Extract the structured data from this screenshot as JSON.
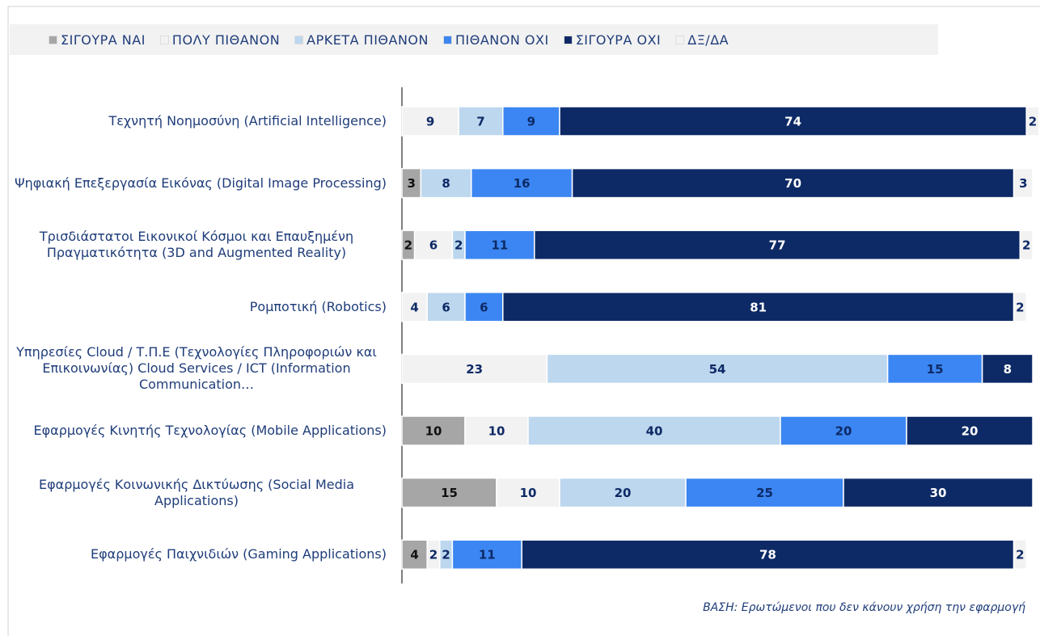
{
  "chart_data": {
    "type": "stacked-bar-horizontal",
    "categories": [
      "Τεχνητή Νοημοσύνη (Artificial Intelligence)",
      "Ψηφιακή Επεξεργασία Εικόνας (Digital Image Processing)",
      "Τρισδιάστατοι Εικονικοί Κόσμοι και Επαυξημένη Πραγματικότητα (3D and Augmented Reality)",
      "Ρομποτική (Robotics)",
      "Υπηρεσίες Cloud  / Τ.Π.Ε (Τεχνολογίες Πληροφοριών και Επικοινωνίας) Cloud Services / ICT (Information Communication…",
      "Εφαρμογές Κινητής Τεχνολογίας  (Mobile Applications)",
      "Εφαρμογές Κοινωνικής Δικτύωσης (Social Media Applications)",
      "Εφαρμογές Παιχνιδιών (Gaming Applications)"
    ],
    "series": [
      {
        "name": "ΣΙΓΟΥΡΑ ΝΑΙ",
        "color": "#a6a6a6",
        "values": [
          null,
          3,
          2,
          null,
          null,
          10,
          15,
          4
        ]
      },
      {
        "name": "ΠΟΛΥ ΠΙΘΑΝΟΝ",
        "color": "#f2f2f2",
        "values": [
          9,
          null,
          6,
          4,
          23,
          10,
          10,
          2
        ]
      },
      {
        "name": "ΑΡΚΕΤΑ ΠΙΘΑΝΟΝ",
        "color": "#bdd7ee",
        "values": [
          7,
          8,
          2,
          6,
          54,
          40,
          20,
          2
        ]
      },
      {
        "name": "ΠΙΘΑΝΟΝ ΟΧΙ",
        "color": "#3b86f2",
        "values": [
          9,
          16,
          11,
          6,
          15,
          20,
          25,
          11
        ]
      },
      {
        "name": "ΣΙΓΟΥΡΑ ΟΧΙ",
        "color": "#0e2a66",
        "values": [
          74,
          70,
          77,
          81,
          8,
          20,
          30,
          78
        ]
      },
      {
        "name": "ΔΞ/ΔΑ",
        "color": "#f2f2f2",
        "values": [
          2,
          3,
          2,
          2,
          null,
          null,
          null,
          2
        ]
      }
    ],
    "xlim": [
      0,
      100
    ],
    "footnote": "ΒΑΣΗ: Ερωτώμενοι που δεν κάνουν χρήση την εφαρμογή"
  }
}
